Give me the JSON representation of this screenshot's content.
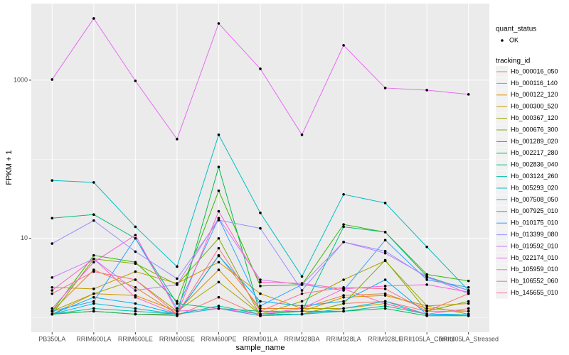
{
  "chart_data": {
    "type": "line",
    "log_y": true,
    "grid": true,
    "xlabel": "sample_name",
    "ylabel": "FPKM + 1",
    "categories": [
      "PB350LA",
      "RRIM600LA",
      "RRIM600LE",
      "RRIM600SE",
      "RRIM600PE",
      "RRIM901LA",
      "RRIM928BA",
      "RRIM928LA",
      "RRIM928LE",
      "RRII105LA_Control",
      "RRII105LA_Stressed"
    ],
    "ylim": [
      0.65,
      9300
    ],
    "yticks": [
      10,
      1000
    ],
    "point_legend": {
      "title": "quant_status",
      "label": "OK"
    },
    "legend_title": "tracking_id",
    "series": [
      {
        "name": "Hb_000016_050",
        "color": "#F8766D",
        "values": [
          1.1,
          1.2,
          1.1,
          1.05,
          1.8,
          1.05,
          1.1,
          1.5,
          1.6,
          1.2,
          2.0
        ]
      },
      {
        "name": "Hb_000116_140",
        "color": "#EA8331",
        "values": [
          1.2,
          4.0,
          2.4,
          1.1,
          6.1,
          1.3,
          1.3,
          1.9,
          2.0,
          1.3,
          1.2
        ]
      },
      {
        "name": "Hb_000122_120",
        "color": "#D89000",
        "values": [
          1.1,
          2.0,
          1.9,
          1.2,
          4.0,
          1.1,
          1.2,
          1.8,
          1.9,
          1.4,
          1.5
        ]
      },
      {
        "name": "Hb_000300_520",
        "color": "#C09B00",
        "values": [
          2.4,
          2.3,
          3.8,
          2.7,
          5.0,
          2.0,
          1.3,
          1.3,
          1.5,
          1.1,
          1.1
        ]
      },
      {
        "name": "Hb_000367_120",
        "color": "#A3A500",
        "values": [
          1.2,
          2.0,
          3.0,
          1.2,
          2.8,
          1.1,
          1.6,
          3.0,
          5.2,
          1.4,
          1.1
        ]
      },
      {
        "name": "Hb_000676_300",
        "color": "#7CAE00",
        "values": [
          1.1,
          5.5,
          4.8,
          2.6,
          10,
          1.05,
          1.1,
          1.5,
          5.3,
          1.2,
          1.6
        ]
      },
      {
        "name": "Hb_001289_020",
        "color": "#39B600",
        "values": [
          1.2,
          6.1,
          5.0,
          1.6,
          40,
          2.5,
          2.6,
          15,
          12,
          3.5,
          2.9
        ]
      },
      {
        "name": "Hb_002217_280",
        "color": "#00BB4E",
        "values": [
          1.1,
          1.2,
          1.1,
          1.1,
          80,
          1.1,
          1.2,
          1.2,
          1.3,
          1.05,
          1.05
        ]
      },
      {
        "name": "Hb_002836_040",
        "color": "#00BF7D",
        "values": [
          18,
          20,
          10,
          1.5,
          1.3,
          1.2,
          1.2,
          14,
          12,
          3.3,
          2.2
        ]
      },
      {
        "name": "Hb_003124_260",
        "color": "#00C1A3",
        "values": [
          1.1,
          1.3,
          1.2,
          1.1,
          1.4,
          1.1,
          1.1,
          1.2,
          1.4,
          1.1,
          1.1
        ]
      },
      {
        "name": "Hb_005293_020",
        "color": "#00BFC4",
        "values": [
          54,
          51,
          14,
          4.4,
          204,
          21,
          3.3,
          36,
          28,
          7.8,
          2.2
        ]
      },
      {
        "name": "Hb_007508_050",
        "color": "#00BAE0",
        "values": [
          1.1,
          1.5,
          1.3,
          1.1,
          1.3,
          1.05,
          1.1,
          1.3,
          1.6,
          1.1,
          1.1
        ]
      },
      {
        "name": "Hb_007925_010",
        "color": "#00B0F6",
        "values": [
          1.1,
          1.8,
          1.5,
          1.1,
          6.0,
          1.6,
          1.4,
          1.6,
          3.0,
          1.1,
          1.05
        ]
      },
      {
        "name": "Hb_010175_010",
        "color": "#35A2FF",
        "values": [
          1.2,
          1.6,
          10,
          1.3,
          18,
          1.4,
          2.6,
          2.2,
          9.5,
          3.0,
          2.4
        ]
      },
      {
        "name": "Hb_013399_080",
        "color": "#9590FF",
        "values": [
          8.6,
          16.8,
          6.8,
          3.1,
          17,
          13.4,
          2.2,
          9,
          6.9,
          3.2,
          2.2
        ]
      },
      {
        "name": "Hb_019592_010",
        "color": "#C77CFF",
        "values": [
          3.2,
          5.5,
          2.2,
          2.6,
          18,
          3.0,
          2.6,
          9,
          6.5,
          3.3,
          2.0
        ]
      },
      {
        "name": "Hb_022174_010",
        "color": "#E76BF3",
        "values": [
          1020,
          6030,
          980,
          180,
          5210,
          1390,
          204,
          2760,
          796,
          748,
          662
        ]
      },
      {
        "name": "Hb_105959_010",
        "color": "#FA62DB",
        "values": [
          1.3,
          5.0,
          11,
          1.2,
          1.3,
          1.1,
          1.3,
          2.3,
          2.5,
          2.6,
          2.1
        ]
      },
      {
        "name": "Hb_106552_060",
        "color": "#FF62BC",
        "values": [
          2.2,
          5.5,
          1.8,
          1.1,
          22,
          2.8,
          2.7,
          2.3,
          1.5,
          1.1,
          1.3
        ]
      },
      {
        "name": "Hb_145655_010",
        "color": "#FF6C91",
        "values": [
          2.0,
          3.8,
          3.0,
          1.1,
          7.5,
          1.2,
          2.0,
          2.4,
          2.3,
          1.2,
          1.2
        ]
      }
    ]
  }
}
